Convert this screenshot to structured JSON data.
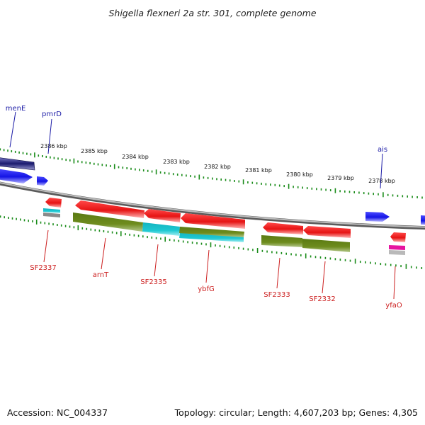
{
  "header": {
    "title": "Shigella flexneri 2a str. 301, complete genome"
  },
  "footer": {
    "accession": "Accession: NC_004337",
    "summary": "Topology: circular; Length: 4,607,203 bp; Genes: 4,305"
  },
  "scale": {
    "ticks": [
      "2386 kbp",
      "2385 kbp",
      "2384 kbp",
      "2383 kbp",
      "2382 kbp",
      "2381 kbp",
      "2380 kbp",
      "2379 kbp",
      "2378 kbp"
    ]
  },
  "genes": {
    "above": [
      "menE",
      "pmrD",
      "ais"
    ],
    "below": [
      "SF2337",
      "arnT",
      "SF2335",
      "ybfG",
      "SF2333",
      "SF2332",
      "yfaO"
    ]
  },
  "colors": {
    "forward": "#1414e6",
    "reverse": "#e61414",
    "olive": "#6e8c1e",
    "cyan": "#1ec8d2",
    "magenta": "#e614a0",
    "navy": "#1a1a6e",
    "tick": "#1a8c1a",
    "backbone": "#808080"
  }
}
